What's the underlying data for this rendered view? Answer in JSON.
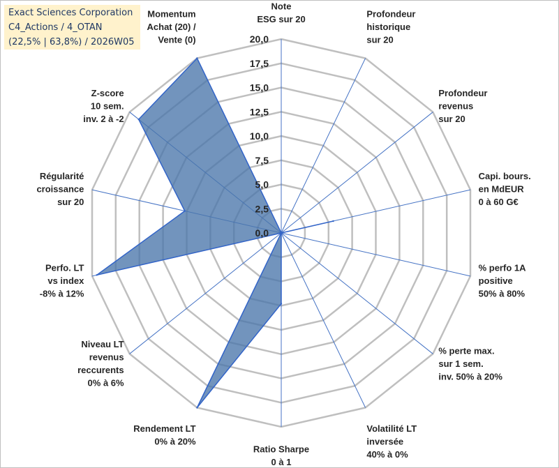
{
  "header": {
    "line1": "Exact Sciences Corporation",
    "line2": "C4_Actions / 4_OTAN",
    "line3": "(22,5% | 63,8%) / 2026W05"
  },
  "chart_data": {
    "type": "radar",
    "title": "Exact Sciences Corporation",
    "rlim": [
      0,
      20
    ],
    "tick_values": [
      0,
      2.5,
      5,
      7.5,
      10,
      12.5,
      15,
      17.5,
      20
    ],
    "tick_labels": [
      "0,0",
      "2,5",
      "5,0",
      "7,5",
      "10,0",
      "12,5",
      "15,0",
      "17,5",
      "20,0"
    ],
    "categories": [
      [
        "Note",
        "ESG sur 20"
      ],
      [
        "Profondeur",
        "historique",
        "sur 20"
      ],
      [
        "Profondeur",
        "revenus",
        "sur 20"
      ],
      [
        "Capi. bours.",
        "en MdEUR",
        "0 à 60 G€"
      ],
      [
        "% perfo 1A",
        "positive",
        "50% à 80%"
      ],
      [
        "% perte max.",
        "sur 1 sem.",
        "inv. 50% à 20%"
      ],
      [
        "Volatilité LT",
        "inversée",
        "40% à 0%"
      ],
      [
        "Ratio Sharpe",
        "0 à 1"
      ],
      [
        "Rendement LT",
        "0% à 20%"
      ],
      [
        "Niveau LT",
        "revenus",
        "reccurents",
        "0% à 6%"
      ],
      [
        "Perfo. LT",
        "vs index",
        "-8% à 12%"
      ],
      [
        "Régularité",
        "croissance",
        "sur 20"
      ],
      [
        "Z-score",
        "10 sem.",
        "inv. 2 à -2"
      ],
      [
        "Momentum",
        "Achat (20) /",
        "Vente (0)"
      ]
    ],
    "series": [
      {
        "name": "Exact Sciences Corporation",
        "values": [
          0,
          0,
          0,
          5.5,
          0,
          0,
          0,
          7.3,
          20,
          0,
          19.5,
          10.2,
          18.8,
          20
        ]
      }
    ],
    "colors": {
      "fill": "#4a76aa",
      "stroke": "#3264c8",
      "grid": "#bfbfbf",
      "axis": "#4472c4"
    }
  }
}
